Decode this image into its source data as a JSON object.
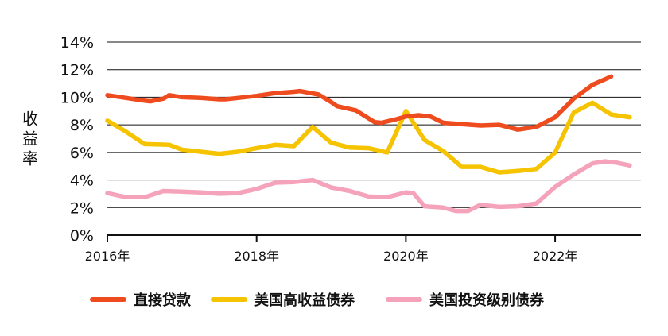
{
  "chart_data": {
    "type": "line",
    "title": "",
    "xlabel": "",
    "ylabel": "收益率",
    "ylim": [
      0,
      14
    ],
    "xlim": [
      2016,
      2023.15
    ],
    "yticks": [
      {
        "value": 0,
        "label": "0%"
      },
      {
        "value": 2,
        "label": "2%"
      },
      {
        "value": 4,
        "label": "4%"
      },
      {
        "value": 6,
        "label": "6%"
      },
      {
        "value": 8,
        "label": "8%"
      },
      {
        "value": 10,
        "label": "10%"
      },
      {
        "value": 12,
        "label": "12%"
      },
      {
        "value": 14,
        "label": "14%"
      }
    ],
    "xticks": [
      {
        "value": 2016,
        "label": "2016年"
      },
      {
        "value": 2018,
        "label": "2018年"
      },
      {
        "value": 2020,
        "label": "2020年"
      },
      {
        "value": 2022,
        "label": "2022年"
      }
    ],
    "grid": true,
    "legend": "bottom",
    "series": [
      {
        "name": "直接贷款",
        "color": "#EE4B1E",
        "points": [
          [
            2016.0,
            10.15
          ],
          [
            2016.25,
            9.95
          ],
          [
            2016.5,
            9.75
          ],
          [
            2016.58,
            9.7
          ],
          [
            2016.75,
            9.9
          ],
          [
            2016.83,
            10.15
          ],
          [
            2017.0,
            10.0
          ],
          [
            2017.25,
            9.95
          ],
          [
            2017.5,
            9.85
          ],
          [
            2017.58,
            9.85
          ],
          [
            2017.75,
            9.95
          ],
          [
            2018.0,
            10.1
          ],
          [
            2018.25,
            10.3
          ],
          [
            2018.5,
            10.4
          ],
          [
            2018.58,
            10.45
          ],
          [
            2018.83,
            10.2
          ],
          [
            2019.0,
            9.65
          ],
          [
            2019.08,
            9.35
          ],
          [
            2019.33,
            9.05
          ],
          [
            2019.58,
            8.2
          ],
          [
            2019.67,
            8.15
          ],
          [
            2019.83,
            8.35
          ],
          [
            2020.0,
            8.6
          ],
          [
            2020.17,
            8.7
          ],
          [
            2020.33,
            8.6
          ],
          [
            2020.5,
            8.15
          ],
          [
            2020.75,
            8.05
          ],
          [
            2021.0,
            7.95
          ],
          [
            2021.25,
            8.0
          ],
          [
            2021.5,
            7.65
          ],
          [
            2021.75,
            7.85
          ],
          [
            2022.0,
            8.55
          ],
          [
            2022.25,
            9.9
          ],
          [
            2022.5,
            10.9
          ],
          [
            2022.75,
            11.5
          ]
        ]
      },
      {
        "name": "美国高收益债券",
        "color": "#F5C300",
        "points": [
          [
            2016.0,
            8.3
          ],
          [
            2016.25,
            7.5
          ],
          [
            2016.5,
            6.6
          ],
          [
            2016.83,
            6.55
          ],
          [
            2017.0,
            6.2
          ],
          [
            2017.25,
            6.05
          ],
          [
            2017.5,
            5.9
          ],
          [
            2017.75,
            6.05
          ],
          [
            2018.0,
            6.3
          ],
          [
            2018.25,
            6.55
          ],
          [
            2018.5,
            6.45
          ],
          [
            2018.75,
            7.85
          ],
          [
            2019.0,
            6.7
          ],
          [
            2019.25,
            6.35
          ],
          [
            2019.5,
            6.3
          ],
          [
            2019.75,
            6.0
          ],
          [
            2020.0,
            9.0
          ],
          [
            2020.25,
            6.9
          ],
          [
            2020.5,
            6.1
          ],
          [
            2020.75,
            4.95
          ],
          [
            2021.0,
            4.95
          ],
          [
            2021.25,
            4.55
          ],
          [
            2021.5,
            4.65
          ],
          [
            2021.75,
            4.8
          ],
          [
            2022.0,
            6.0
          ],
          [
            2022.25,
            8.9
          ],
          [
            2022.5,
            9.6
          ],
          [
            2022.75,
            8.75
          ],
          [
            2023.0,
            8.55
          ]
        ]
      },
      {
        "name": "美国投资级别债券",
        "color": "#F4A3BB",
        "points": [
          [
            2016.0,
            3.05
          ],
          [
            2016.25,
            2.75
          ],
          [
            2016.5,
            2.75
          ],
          [
            2016.75,
            3.2
          ],
          [
            2017.0,
            3.15
          ],
          [
            2017.25,
            3.1
          ],
          [
            2017.5,
            3.0
          ],
          [
            2017.75,
            3.05
          ],
          [
            2018.0,
            3.35
          ],
          [
            2018.25,
            3.8
          ],
          [
            2018.5,
            3.85
          ],
          [
            2018.75,
            4.0
          ],
          [
            2019.0,
            3.45
          ],
          [
            2019.25,
            3.2
          ],
          [
            2019.5,
            2.8
          ],
          [
            2019.75,
            2.75
          ],
          [
            2020.0,
            3.1
          ],
          [
            2020.1,
            3.05
          ],
          [
            2020.25,
            2.1
          ],
          [
            2020.5,
            2.0
          ],
          [
            2020.67,
            1.75
          ],
          [
            2020.83,
            1.75
          ],
          [
            2021.0,
            2.2
          ],
          [
            2021.25,
            2.05
          ],
          [
            2021.5,
            2.1
          ],
          [
            2021.75,
            2.3
          ],
          [
            2022.0,
            3.5
          ],
          [
            2022.25,
            4.4
          ],
          [
            2022.5,
            5.2
          ],
          [
            2022.67,
            5.35
          ],
          [
            2022.83,
            5.25
          ],
          [
            2023.0,
            5.05
          ]
        ]
      }
    ]
  }
}
